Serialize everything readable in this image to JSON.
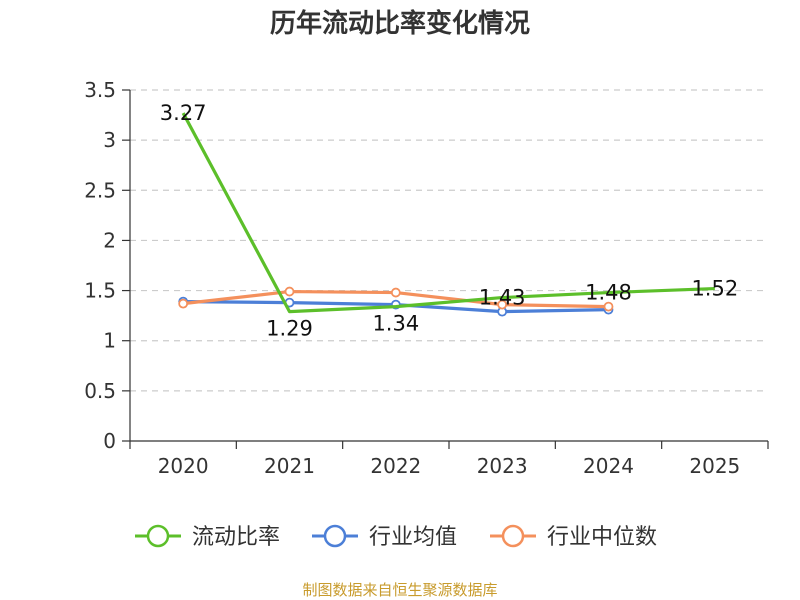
{
  "chart_data": {
    "type": "line",
    "title": "历年流动比率变化情况",
    "categories": [
      "2020",
      "2021",
      "2022",
      "2023",
      "2024",
      "2025"
    ],
    "ylim": [
      0,
      3.5
    ],
    "yticks": [
      "0",
      "0.5",
      "1",
      "1.5",
      "2",
      "2.5",
      "3",
      "3.5"
    ],
    "grid": true,
    "legend_position": "bottom",
    "series": [
      {
        "name": "流动比率",
        "color": "#5cbf2a",
        "values": [
          3.27,
          1.29,
          1.34,
          1.43,
          1.48,
          1.52
        ],
        "labels": [
          "3.27",
          "1.29",
          "1.34",
          "1.43",
          "1.48",
          "1.52"
        ],
        "markers": false
      },
      {
        "name": "行业均值",
        "color": "#4c7fd7",
        "values": [
          1.39,
          1.38,
          1.36,
          1.29,
          1.31,
          null
        ],
        "markers": true
      },
      {
        "name": "行业中位数",
        "color": "#f4905c",
        "values": [
          1.37,
          1.49,
          1.48,
          1.36,
          1.34,
          null
        ],
        "markers": true
      }
    ]
  },
  "source_note": "制图数据来自恒生聚源数据库"
}
